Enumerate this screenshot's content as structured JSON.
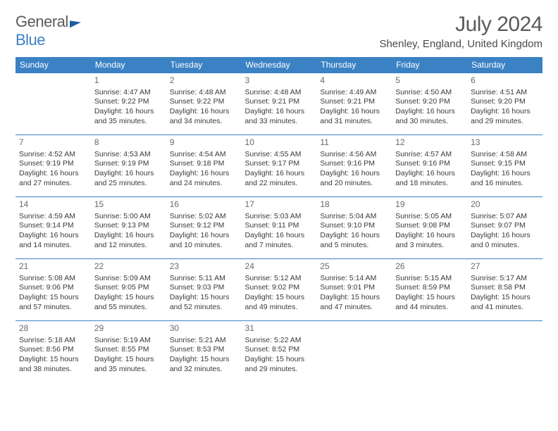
{
  "brand": {
    "part1": "General",
    "part2": "Blue"
  },
  "title": "July 2024",
  "location": "Shenley, England, United Kingdom",
  "colors": {
    "header_bg": "#3b82c4",
    "header_text": "#ffffff",
    "text": "#3a3a3a",
    "title_text": "#5a5a5a"
  },
  "day_headers": [
    "Sunday",
    "Monday",
    "Tuesday",
    "Wednesday",
    "Thursday",
    "Friday",
    "Saturday"
  ],
  "weeks": [
    [
      null,
      {
        "n": "1",
        "sr": "4:47 AM",
        "ss": "9:22 PM",
        "dl": "16 hours and 35 minutes."
      },
      {
        "n": "2",
        "sr": "4:48 AM",
        "ss": "9:22 PM",
        "dl": "16 hours and 34 minutes."
      },
      {
        "n": "3",
        "sr": "4:48 AM",
        "ss": "9:21 PM",
        "dl": "16 hours and 33 minutes."
      },
      {
        "n": "4",
        "sr": "4:49 AM",
        "ss": "9:21 PM",
        "dl": "16 hours and 31 minutes."
      },
      {
        "n": "5",
        "sr": "4:50 AM",
        "ss": "9:20 PM",
        "dl": "16 hours and 30 minutes."
      },
      {
        "n": "6",
        "sr": "4:51 AM",
        "ss": "9:20 PM",
        "dl": "16 hours and 29 minutes."
      }
    ],
    [
      {
        "n": "7",
        "sr": "4:52 AM",
        "ss": "9:19 PM",
        "dl": "16 hours and 27 minutes."
      },
      {
        "n": "8",
        "sr": "4:53 AM",
        "ss": "9:19 PM",
        "dl": "16 hours and 25 minutes."
      },
      {
        "n": "9",
        "sr": "4:54 AM",
        "ss": "9:18 PM",
        "dl": "16 hours and 24 minutes."
      },
      {
        "n": "10",
        "sr": "4:55 AM",
        "ss": "9:17 PM",
        "dl": "16 hours and 22 minutes."
      },
      {
        "n": "11",
        "sr": "4:56 AM",
        "ss": "9:16 PM",
        "dl": "16 hours and 20 minutes."
      },
      {
        "n": "12",
        "sr": "4:57 AM",
        "ss": "9:16 PM",
        "dl": "16 hours and 18 minutes."
      },
      {
        "n": "13",
        "sr": "4:58 AM",
        "ss": "9:15 PM",
        "dl": "16 hours and 16 minutes."
      }
    ],
    [
      {
        "n": "14",
        "sr": "4:59 AM",
        "ss": "9:14 PM",
        "dl": "16 hours and 14 minutes."
      },
      {
        "n": "15",
        "sr": "5:00 AM",
        "ss": "9:13 PM",
        "dl": "16 hours and 12 minutes."
      },
      {
        "n": "16",
        "sr": "5:02 AM",
        "ss": "9:12 PM",
        "dl": "16 hours and 10 minutes."
      },
      {
        "n": "17",
        "sr": "5:03 AM",
        "ss": "9:11 PM",
        "dl": "16 hours and 7 minutes."
      },
      {
        "n": "18",
        "sr": "5:04 AM",
        "ss": "9:10 PM",
        "dl": "16 hours and 5 minutes."
      },
      {
        "n": "19",
        "sr": "5:05 AM",
        "ss": "9:08 PM",
        "dl": "16 hours and 3 minutes."
      },
      {
        "n": "20",
        "sr": "5:07 AM",
        "ss": "9:07 PM",
        "dl": "16 hours and 0 minutes."
      }
    ],
    [
      {
        "n": "21",
        "sr": "5:08 AM",
        "ss": "9:06 PM",
        "dl": "15 hours and 57 minutes."
      },
      {
        "n": "22",
        "sr": "5:09 AM",
        "ss": "9:05 PM",
        "dl": "15 hours and 55 minutes."
      },
      {
        "n": "23",
        "sr": "5:11 AM",
        "ss": "9:03 PM",
        "dl": "15 hours and 52 minutes."
      },
      {
        "n": "24",
        "sr": "5:12 AM",
        "ss": "9:02 PM",
        "dl": "15 hours and 49 minutes."
      },
      {
        "n": "25",
        "sr": "5:14 AM",
        "ss": "9:01 PM",
        "dl": "15 hours and 47 minutes."
      },
      {
        "n": "26",
        "sr": "5:15 AM",
        "ss": "8:59 PM",
        "dl": "15 hours and 44 minutes."
      },
      {
        "n": "27",
        "sr": "5:17 AM",
        "ss": "8:58 PM",
        "dl": "15 hours and 41 minutes."
      }
    ],
    [
      {
        "n": "28",
        "sr": "5:18 AM",
        "ss": "8:56 PM",
        "dl": "15 hours and 38 minutes."
      },
      {
        "n": "29",
        "sr": "5:19 AM",
        "ss": "8:55 PM",
        "dl": "15 hours and 35 minutes."
      },
      {
        "n": "30",
        "sr": "5:21 AM",
        "ss": "8:53 PM",
        "dl": "15 hours and 32 minutes."
      },
      {
        "n": "31",
        "sr": "5:22 AM",
        "ss": "8:52 PM",
        "dl": "15 hours and 29 minutes."
      },
      null,
      null,
      null
    ]
  ],
  "labels": {
    "sunrise": "Sunrise: ",
    "sunset": "Sunset: ",
    "daylight": "Daylight: "
  }
}
